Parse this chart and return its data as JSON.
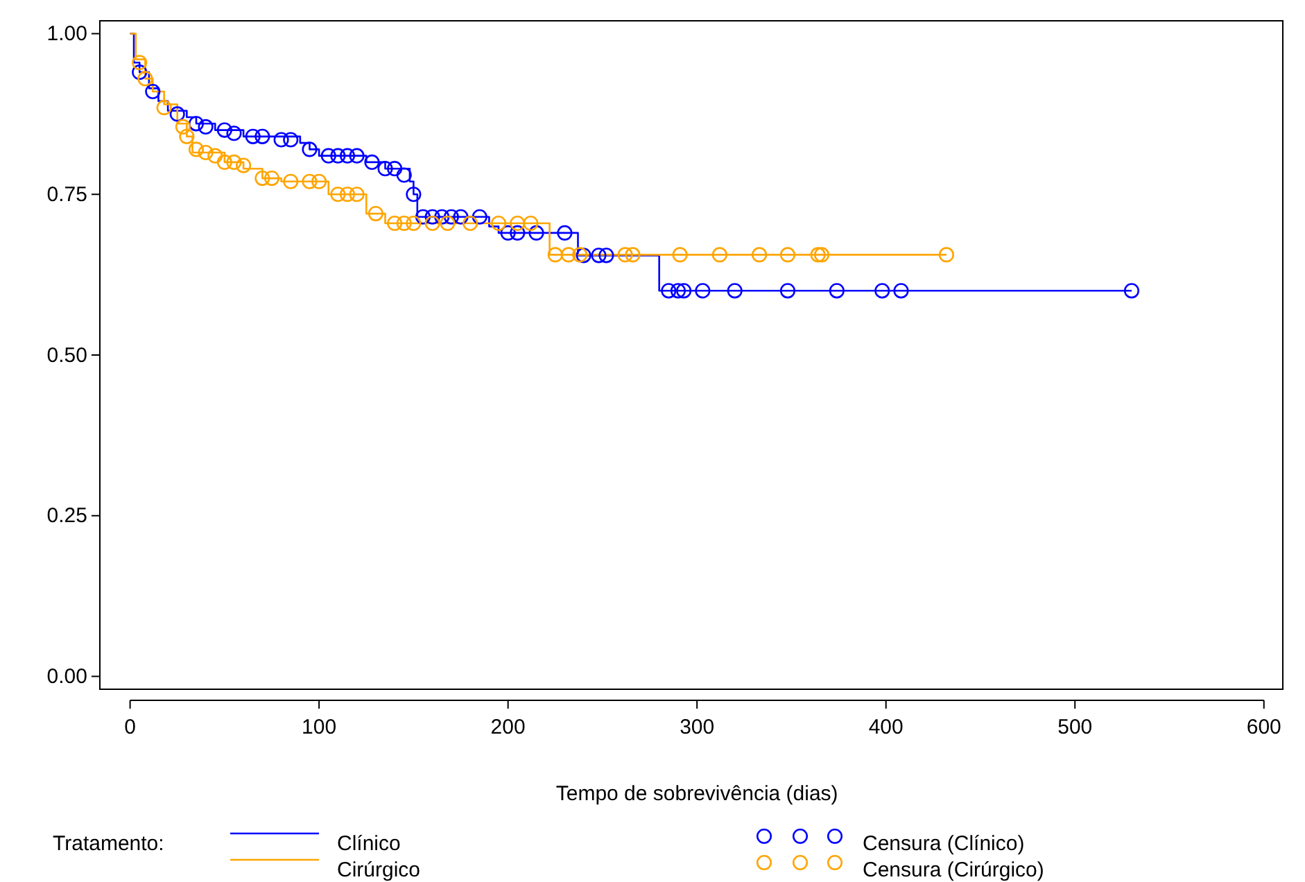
{
  "chart_data": {
    "type": "step",
    "xlabel": "Tempo de sobrevivência (dias)",
    "legend_title": "Tratamento:",
    "legend": "bottom",
    "grid": false,
    "xlim": [
      -16,
      610
    ],
    "ylim": [
      -0.02,
      1.02
    ],
    "xticks": [
      0,
      100,
      200,
      300,
      400,
      500,
      600
    ],
    "yticks": [
      {
        "value": 0,
        "label": "0.00"
      },
      {
        "value": 0.25,
        "label": "0.25"
      },
      {
        "value": 0.5,
        "label": "0.50"
      },
      {
        "value": 0.75,
        "label": "0.75"
      },
      {
        "value": 1,
        "label": "1.00"
      }
    ],
    "series": [
      {
        "name": "Clínico",
        "color": "#0000ff",
        "marker": "none",
        "x": [
          0,
          2,
          5,
          10,
          15,
          20,
          30,
          35,
          45,
          60,
          90,
          95,
          100,
          125,
          135,
          148,
          150,
          152,
          190,
          195,
          237,
          280,
          530
        ],
        "values": [
          1,
          0.955,
          0.94,
          0.915,
          0.895,
          0.88,
          0.87,
          0.86,
          0.85,
          0.84,
          0.83,
          0.82,
          0.81,
          0.8,
          0.79,
          0.77,
          0.75,
          0.715,
          0.7,
          0.69,
          0.655,
          0.6,
          0.6
        ]
      },
      {
        "name": "Cirúrgico",
        "color": "#ffa500",
        "marker": "none",
        "x": [
          0,
          3,
          8,
          12,
          18,
          25,
          30,
          33,
          50,
          60,
          70,
          80,
          105,
          125,
          135,
          222,
          432
        ],
        "values": [
          1,
          0.96,
          0.93,
          0.91,
          0.89,
          0.86,
          0.84,
          0.815,
          0.8,
          0.79,
          0.775,
          0.77,
          0.75,
          0.72,
          0.705,
          0.656,
          0.656
        ]
      },
      {
        "name": "Censura (Clínico)",
        "type": "scatter",
        "color": "#0000ff",
        "marker": "circle",
        "x": [
          5,
          12,
          25,
          35,
          40,
          50,
          55,
          65,
          70,
          80,
          85,
          95,
          105,
          110,
          115,
          120,
          128,
          135,
          140,
          145,
          150,
          155,
          160,
          165,
          170,
          175,
          185,
          200,
          205,
          215,
          230,
          240,
          248,
          252,
          285,
          290,
          293,
          303,
          320,
          348,
          374,
          398,
          408,
          530
        ],
        "values": [
          0.94,
          0.91,
          0.875,
          0.86,
          0.855,
          0.85,
          0.845,
          0.84,
          0.84,
          0.835,
          0.835,
          0.82,
          0.81,
          0.81,
          0.81,
          0.81,
          0.8,
          0.79,
          0.79,
          0.78,
          0.75,
          0.715,
          0.715,
          0.715,
          0.715,
          0.715,
          0.715,
          0.69,
          0.69,
          0.69,
          0.69,
          0.655,
          0.655,
          0.655,
          0.6,
          0.6,
          0.6,
          0.6,
          0.6,
          0.6,
          0.6,
          0.6,
          0.6,
          0.6
        ]
      },
      {
        "name": "Censura (Cirúrgico)",
        "type": "scatter",
        "color": "#ffa500",
        "marker": "circle",
        "x": [
          5,
          8,
          18,
          28,
          30,
          35,
          40,
          45,
          50,
          55,
          60,
          70,
          75,
          85,
          95,
          100,
          110,
          115,
          120,
          130,
          140,
          145,
          150,
          160,
          168,
          180,
          195,
          205,
          212,
          225,
          232,
          238,
          262,
          266,
          291,
          312,
          333,
          348,
          364,
          366,
          432
        ],
        "values": [
          0.955,
          0.93,
          0.885,
          0.855,
          0.84,
          0.82,
          0.815,
          0.81,
          0.8,
          0.8,
          0.795,
          0.775,
          0.775,
          0.77,
          0.77,
          0.77,
          0.75,
          0.75,
          0.75,
          0.72,
          0.705,
          0.705,
          0.705,
          0.705,
          0.705,
          0.705,
          0.705,
          0.705,
          0.705,
          0.656,
          0.656,
          0.656,
          0.656,
          0.656,
          0.656,
          0.656,
          0.656,
          0.656,
          0.656,
          0.656,
          0.656
        ]
      }
    ]
  }
}
